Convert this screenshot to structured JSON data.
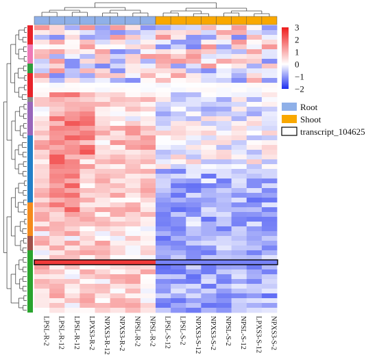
{
  "chart_data": {
    "type": "heatmap",
    "columns": [
      "LPSL-R-2",
      "LPSL-R-12",
      "LPSL-R-12",
      "LPXS3-R-2",
      "NPXS3-R-12",
      "NPXS3-R-2",
      "NPSL-R-2",
      "NPSL-R-2",
      "LPSL-S-12",
      "LPSL-S-2",
      "NPXS3-S-12",
      "NPXS3-S-2",
      "NPSL-S-2",
      "NPSL-S-12",
      "LPXS3-S-12",
      "NPXS3-S-2"
    ],
    "column_groups": [
      "Root",
      "Root",
      "Root",
      "Root",
      "Root",
      "Root",
      "Root",
      "Root",
      "Shoot",
      "Shoot",
      "Shoot",
      "Shoot",
      "Shoot",
      "Shoot",
      "Shoot",
      "Shoot"
    ],
    "row_count": 60,
    "row_clusters": [
      {
        "color": "#e8232a",
        "rows": 4
      },
      {
        "color": "#ee79b6",
        "rows": 4
      },
      {
        "color": "#2e9e3f",
        "rows": 2
      },
      {
        "color": "#e8232a",
        "rows": 5
      },
      {
        "color": "#8a8a8a",
        "rows": 1
      },
      {
        "color": "#9966bb",
        "rows": 7
      },
      {
        "color": "#2380c8",
        "rows": 14
      },
      {
        "color": "#f48b1d",
        "rows": 7
      },
      {
        "color": "#a0524a",
        "rows": 3
      },
      {
        "color": "#2aa42e",
        "rows": 13
      }
    ],
    "color_scale": {
      "min": -2,
      "max": 3,
      "ticks": [
        "3",
        "2",
        "1",
        "0",
        "−1",
        "−2"
      ],
      "low_color": "#1d2ff0",
      "mid_color": "#ffffff",
      "high_color": "#ee1c1c"
    },
    "highlighted_row": "transcript_104625",
    "highlighted_row_index": 49,
    "legend": [
      {
        "label": "Root",
        "color": "#8fb0e8"
      },
      {
        "label": "Shoot",
        "color": "#f9a800"
      },
      {
        "label": "transcript_104625",
        "color": "#ffffff"
      }
    ],
    "grid": false
  }
}
